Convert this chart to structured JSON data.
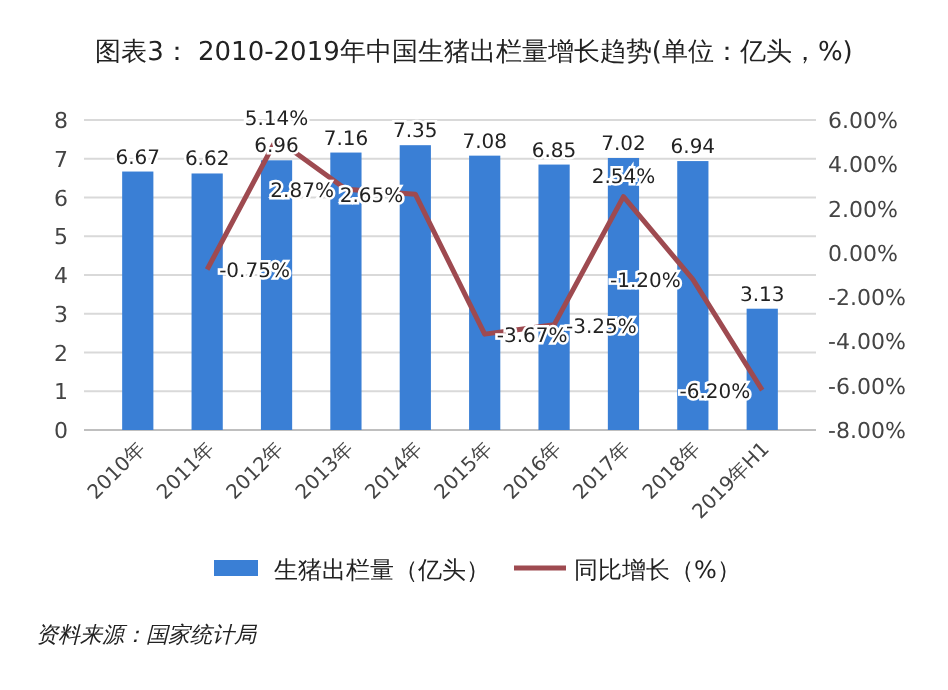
{
  "chart_data": {
    "type": "bar",
    "title": "图表3： 2010-2019年中国生猪出栏量增长趋势(单位：亿头，%)",
    "categories": [
      "2010年",
      "2011年",
      "2012年",
      "2013年",
      "2014年",
      "2015年",
      "2016年",
      "2017年",
      "2018年",
      "2019年H1"
    ],
    "series": [
      {
        "name": "生猪出栏量（亿头）",
        "color": "#3a7fd5",
        "values": [
          6.67,
          6.62,
          6.96,
          7.16,
          7.35,
          7.08,
          6.85,
          7.02,
          6.94,
          3.13
        ],
        "value_labels": [
          "6.67",
          "6.62",
          "6.96",
          "7.16",
          "7.35",
          "7.08",
          "6.85",
          "7.02",
          "6.94",
          "3.13"
        ]
      },
      {
        "name": "同比增长（%）",
        "type": "line",
        "axis": "y2",
        "color": "#9e4a50",
        "values": [
          null,
          -0.75,
          5.14,
          2.87,
          2.65,
          -3.67,
          -3.25,
          2.54,
          -1.2,
          -6.2
        ],
        "value_labels": [
          null,
          "-0.75%",
          "5.14%",
          "2.87%",
          "2.65%",
          "-3.67%",
          "-3.25%",
          "2.54%",
          "-1.20%",
          "-6.20%"
        ]
      }
    ],
    "ylim": [
      0,
      8
    ],
    "yticks": [
      0,
      1,
      2,
      3,
      4,
      5,
      6,
      7,
      8
    ],
    "y2lim": [
      -8,
      6
    ],
    "y2ticks": [
      {
        "value": -8,
        "label": "-8.00%"
      },
      {
        "value": -6,
        "label": "-6.00%"
      },
      {
        "value": -4,
        "label": "-4.00%"
      },
      {
        "value": -2,
        "label": "-2.00%"
      },
      {
        "value": 0,
        "label": "0.00%"
      },
      {
        "value": 2,
        "label": "2.00%"
      },
      {
        "value": 4,
        "label": "4.00%"
      },
      {
        "value": 6,
        "label": "6.00%"
      }
    ],
    "grid": "y",
    "legend": "bottom",
    "line_style": "solid",
    "marker": "none",
    "annotations": [
      "资料来源：国家统计局"
    ]
  }
}
